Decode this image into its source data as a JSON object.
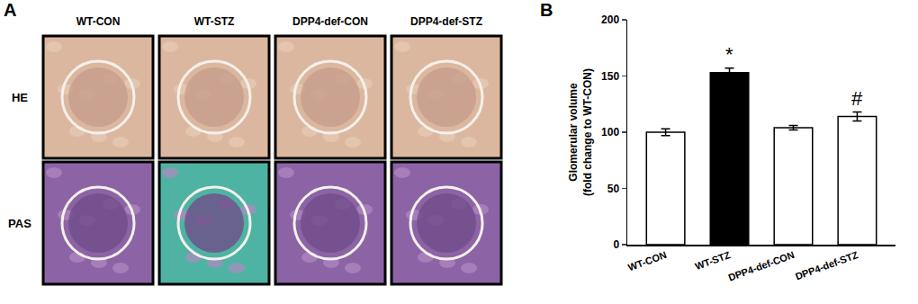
{
  "panel_a": {
    "label": "A",
    "columns": [
      "WT-CON",
      "WT-STZ",
      "DPP4-def-CON",
      "DPP4-def-STZ"
    ],
    "rows": [
      "HE",
      "PAS"
    ]
  },
  "chart_data": {
    "label": "B",
    "type": "bar",
    "categories": [
      "WT-CON",
      "WT-STZ",
      "DPP4-def-CON",
      "DPP4-def-STZ"
    ],
    "values": [
      100,
      153,
      104,
      114
    ],
    "errors": [
      3,
      4,
      2,
      4
    ],
    "colors": [
      "#ffffff",
      "#000000",
      "#ffffff",
      "#ffffff"
    ],
    "y_label": [
      "Glomerular volume",
      "(fold change to WT-CON)"
    ],
    "ylim": [
      0,
      200
    ],
    "yticks": [
      0,
      50,
      100,
      150,
      200
    ],
    "grid": false,
    "annotations": [
      {
        "category": "WT-STZ",
        "text": "*"
      },
      {
        "category": "DPP4-def-STZ",
        "text": "#"
      }
    ]
  }
}
